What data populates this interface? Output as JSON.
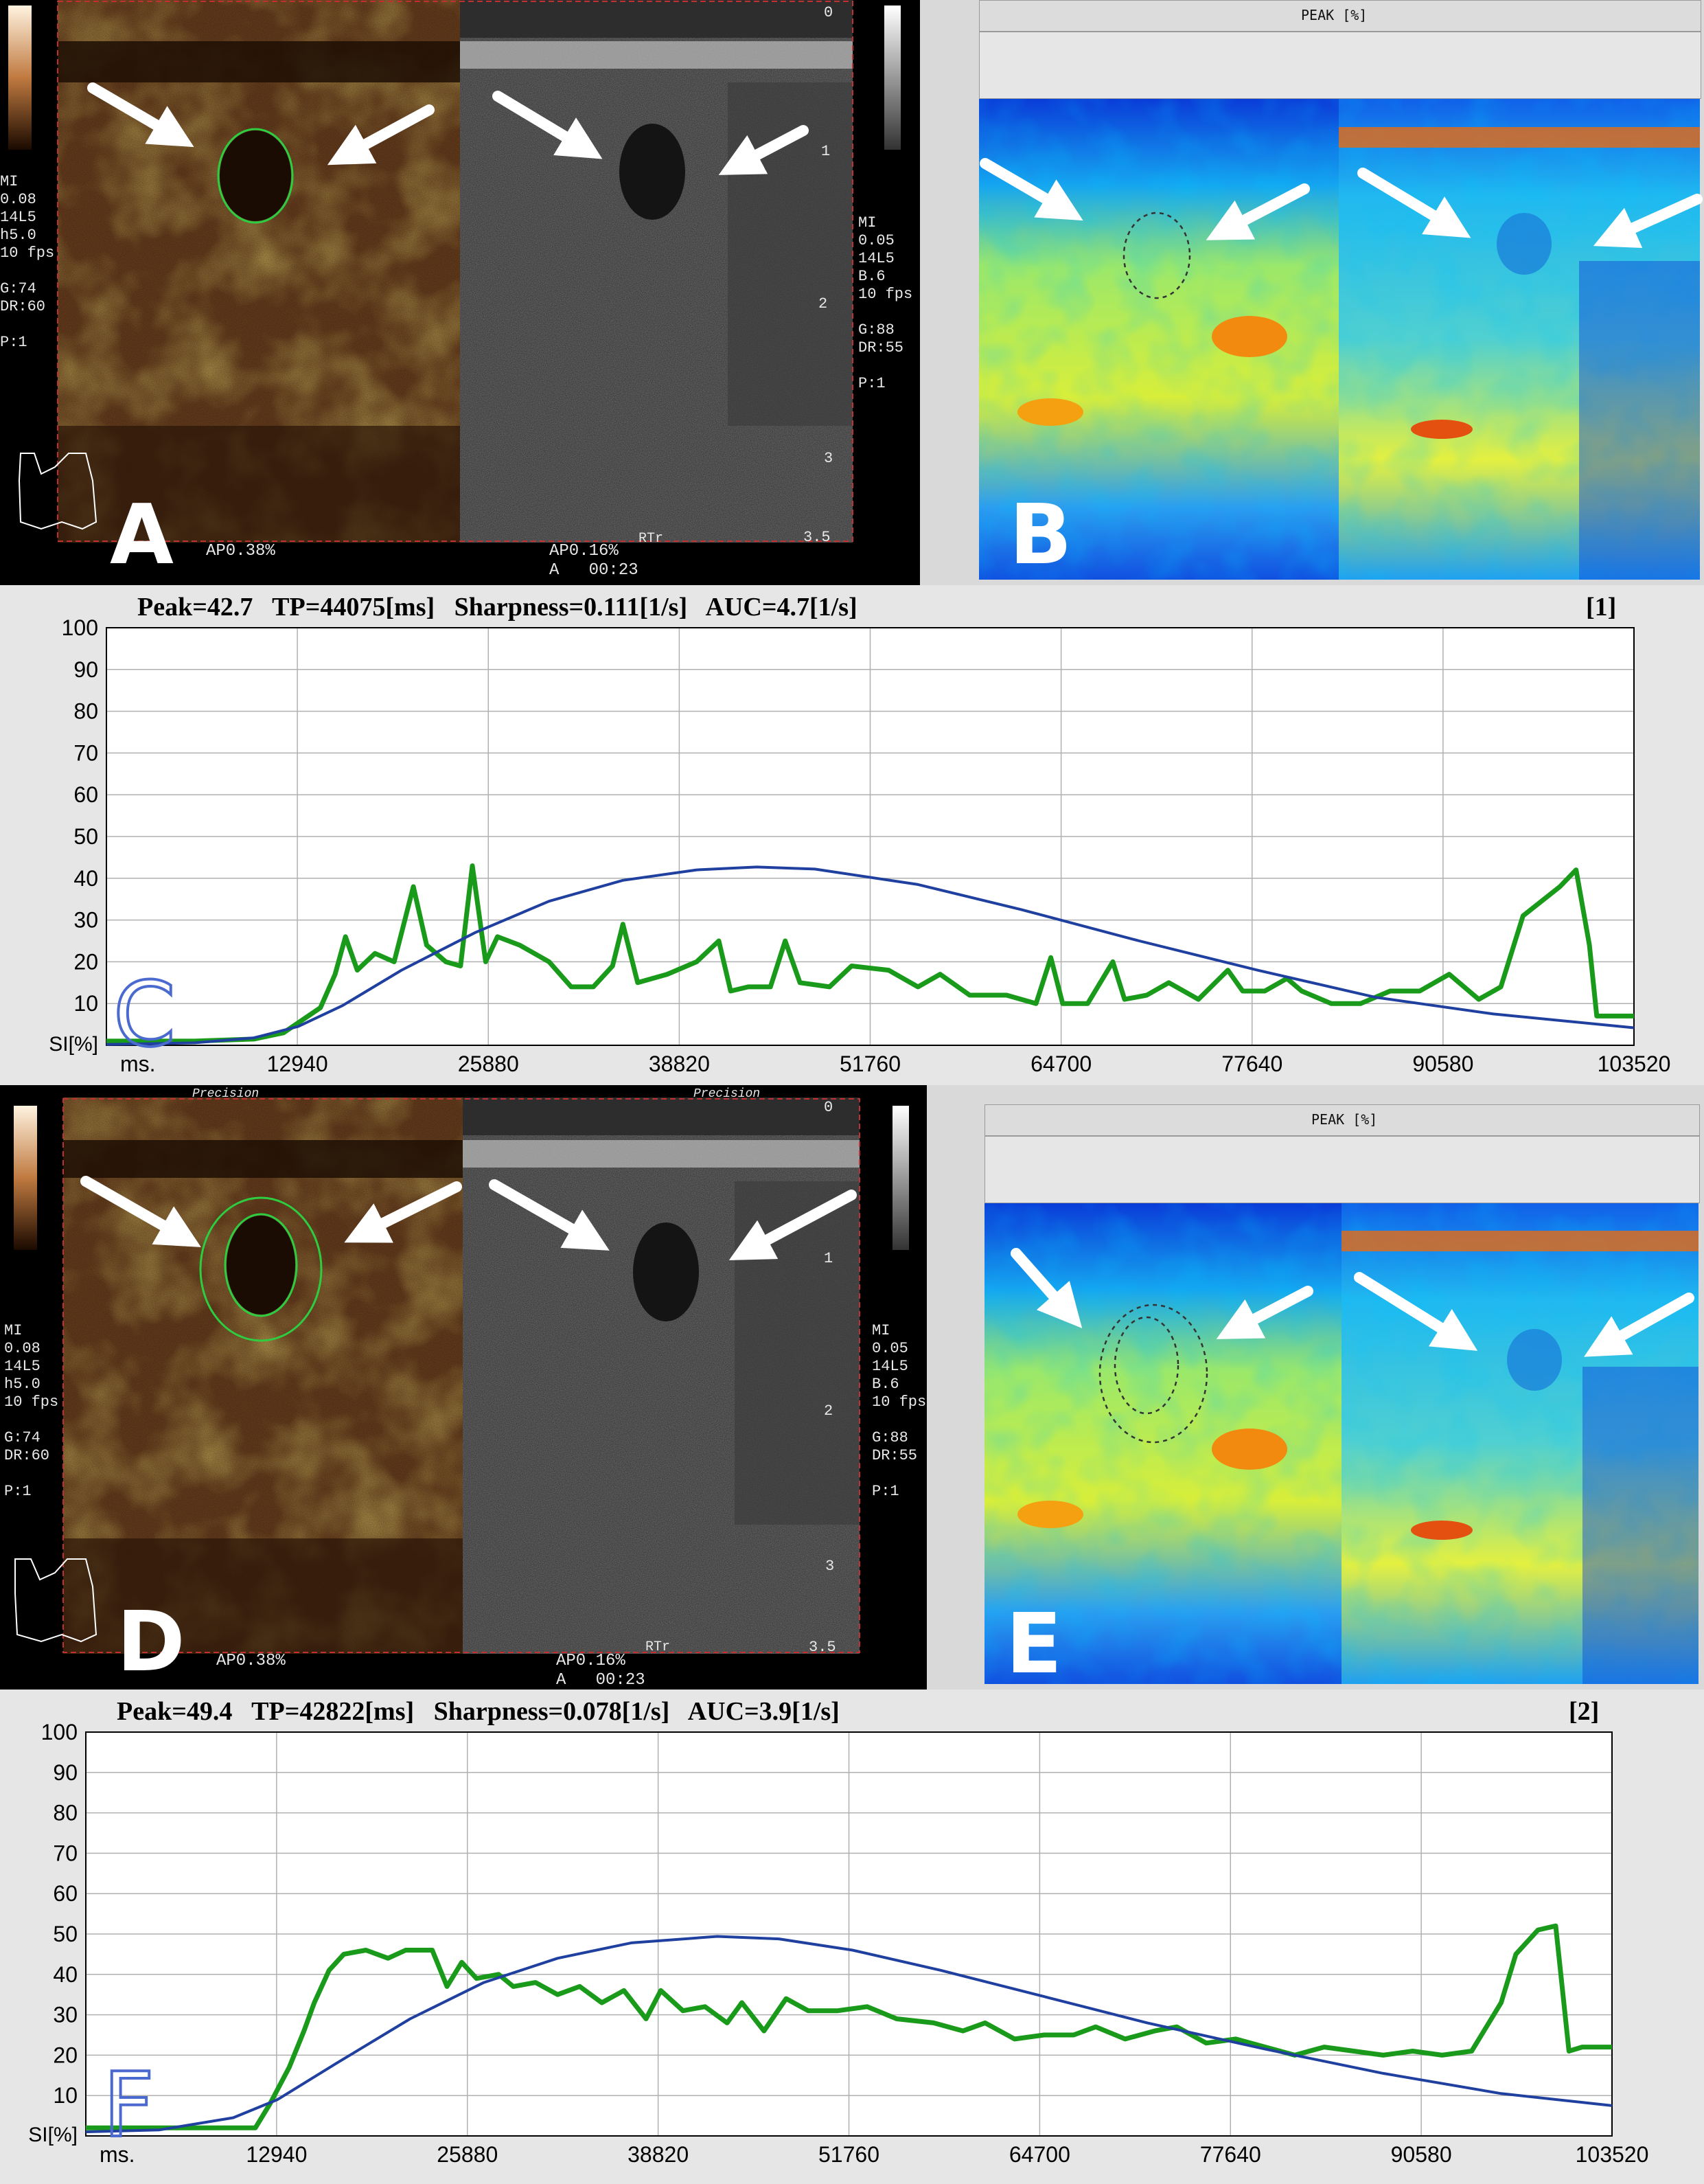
{
  "panels": {
    "a": {
      "letter": "A",
      "left_overlay": [
        "MI",
        "0.08",
        "14L5",
        "h5.0",
        "10 fps",
        "",
        "G:74",
        "DR:60",
        "",
        "P:1"
      ],
      "right_overlay": [
        "MI",
        "0.05",
        "14L5",
        "B.6",
        "10 fps",
        "",
        "G:88",
        "DR:55",
        "",
        "P:1"
      ],
      "bottom_left": "AP0.38%",
      "bottom_mid": "AP0.16%",
      "bottom_time": "A   00:23",
      "rtr": "RTr",
      "depth_ticks": [
        "0",
        "1",
        "2",
        "3",
        "3.5"
      ]
    },
    "b": {
      "letter": "B",
      "title": "PEAK [%]"
    },
    "d": {
      "letter": "D",
      "left_overlay": [
        "MI",
        "0.08",
        "14L5",
        "h5.0",
        "10 fps",
        "",
        "G:74",
        "DR:60",
        "",
        "P:1"
      ],
      "right_overlay": [
        "MI",
        "0.05",
        "14L5",
        "B.6",
        "10 fps",
        "",
        "G:88",
        "DR:55",
        "",
        "P:1"
      ],
      "bottom_left": "AP0.38%",
      "bottom_mid": "AP0.16%",
      "bottom_time": "A   00:23",
      "rtr": "RTr",
      "header_left": "Precision",
      "header_mid": "Precision",
      "depth_ticks": [
        "0",
        "1",
        "2",
        "3",
        "3.5"
      ]
    },
    "e": {
      "letter": "E",
      "title": "PEAK [%]"
    }
  },
  "chart_data": [
    {
      "panel_letter": "C",
      "type": "line",
      "title": "Peak=42.7   TP=44075[ms]   Sharpness=0.111[1/s]   AUC=4.7[1/s]",
      "roi_id": "[1]",
      "xlabel": "ms.",
      "ylabel": "SI[%]",
      "x_ticks": [
        "12940",
        "25880",
        "38820",
        "51760",
        "64700",
        "77640",
        "90580",
        "103520"
      ],
      "y_ticks": [
        "100",
        "90",
        "80",
        "70",
        "60",
        "50",
        "40",
        "30",
        "20",
        "10"
      ],
      "xlim": [
        0,
        103520
      ],
      "ylim": [
        0,
        100
      ],
      "grid": true,
      "series": [
        {
          "color": "#1a9a1a",
          "points": [
            [
              0,
              1
            ],
            [
              6000,
              1
            ],
            [
              10000,
              1.5
            ],
            [
              12000,
              3
            ],
            [
              14500,
              9
            ],
            [
              15500,
              17
            ],
            [
              16200,
              26
            ],
            [
              17000,
              18
            ],
            [
              18200,
              22
            ],
            [
              19500,
              20
            ],
            [
              20800,
              38
            ],
            [
              21700,
              24
            ],
            [
              23000,
              20
            ],
            [
              24000,
              19
            ],
            [
              24800,
              43
            ],
            [
              25700,
              20
            ],
            [
              26500,
              26
            ],
            [
              28000,
              24
            ],
            [
              30000,
              20
            ],
            [
              31500,
              14
            ],
            [
              33000,
              14
            ],
            [
              34300,
              19
            ],
            [
              35000,
              29
            ],
            [
              36000,
              15
            ],
            [
              38000,
              17
            ],
            [
              40000,
              20
            ],
            [
              41500,
              25
            ],
            [
              42300,
              13
            ],
            [
              43500,
              14
            ],
            [
              45000,
              14
            ],
            [
              46000,
              25
            ],
            [
              47000,
              15
            ],
            [
              49000,
              14
            ],
            [
              50500,
              19
            ],
            [
              53000,
              18
            ],
            [
              55000,
              14
            ],
            [
              56500,
              17
            ],
            [
              58500,
              12
            ],
            [
              61000,
              12
            ],
            [
              63000,
              10
            ],
            [
              64000,
              21
            ],
            [
              64800,
              10
            ],
            [
              66500,
              10
            ],
            [
              68200,
              20
            ],
            [
              69000,
              11
            ],
            [
              70500,
              12
            ],
            [
              72000,
              15
            ],
            [
              74000,
              11
            ],
            [
              76000,
              18
            ],
            [
              77000,
              13
            ],
            [
              78500,
              13
            ],
            [
              80000,
              16
            ],
            [
              81000,
              13
            ],
            [
              83000,
              10
            ],
            [
              85000,
              10
            ],
            [
              87000,
              13
            ],
            [
              89000,
              13
            ],
            [
              91000,
              17
            ],
            [
              93000,
              11
            ],
            [
              94500,
              14
            ],
            [
              96000,
              31
            ],
            [
              98500,
              38
            ],
            [
              99600,
              42
            ],
            [
              100500,
              24
            ],
            [
              101000,
              7
            ],
            [
              103520,
              7
            ]
          ]
        },
        {
          "color": "#2040a0",
          "points": [
            [
              0,
              0.2
            ],
            [
              6000,
              0.6
            ],
            [
              10000,
              1.8
            ],
            [
              13000,
              4.5
            ],
            [
              16000,
              9.5
            ],
            [
              20000,
              18
            ],
            [
              25000,
              27
            ],
            [
              30000,
              34.5
            ],
            [
              35000,
              39.5
            ],
            [
              40000,
              42
            ],
            [
              44075,
              42.7
            ],
            [
              48000,
              42.2
            ],
            [
              55000,
              38.5
            ],
            [
              62000,
              32.5
            ],
            [
              70000,
              25
            ],
            [
              78000,
              18
            ],
            [
              86000,
              11.5
            ],
            [
              94000,
              7.5
            ],
            [
              103520,
              4.2
            ]
          ]
        }
      ]
    },
    {
      "panel_letter": "F",
      "type": "line",
      "title": "Peak=49.4   TP=42822[ms]   Sharpness=0.078[1/s]   AUC=3.9[1/s]",
      "roi_id": "[2]",
      "xlabel": "ms.",
      "ylabel": "SI[%]",
      "x_ticks": [
        "12940",
        "25880",
        "38820",
        "51760",
        "64700",
        "77640",
        "90580",
        "103520"
      ],
      "y_ticks": [
        "100",
        "90",
        "80",
        "70",
        "60",
        "50",
        "40",
        "30",
        "20",
        "10"
      ],
      "xlim": [
        0,
        103520
      ],
      "ylim": [
        0,
        100
      ],
      "grid": true,
      "series": [
        {
          "color": "#1a9a1a",
          "points": [
            [
              0,
              2
            ],
            [
              8000,
              2
            ],
            [
              11500,
              2
            ],
            [
              12500,
              8
            ],
            [
              13800,
              17
            ],
            [
              14800,
              26
            ],
            [
              15500,
              33
            ],
            [
              16500,
              41
            ],
            [
              17500,
              45
            ],
            [
              19000,
              46
            ],
            [
              20500,
              44
            ],
            [
              21700,
              46
            ],
            [
              23500,
              46
            ],
            [
              24500,
              37
            ],
            [
              25500,
              43
            ],
            [
              26500,
              39
            ],
            [
              28000,
              40
            ],
            [
              29000,
              37
            ],
            [
              30500,
              38
            ],
            [
              32000,
              35
            ],
            [
              33500,
              37
            ],
            [
              35000,
              33
            ],
            [
              36500,
              36
            ],
            [
              38000,
              29
            ],
            [
              39000,
              36
            ],
            [
              40500,
              31
            ],
            [
              42000,
              32
            ],
            [
              43500,
              28
            ],
            [
              44500,
              33
            ],
            [
              46000,
              26
            ],
            [
              47500,
              34
            ],
            [
              49000,
              31
            ],
            [
              51000,
              31
            ],
            [
              53000,
              32
            ],
            [
              55000,
              29
            ],
            [
              57500,
              28
            ],
            [
              59500,
              26
            ],
            [
              61000,
              28
            ],
            [
              63000,
              24
            ],
            [
              65000,
              25
            ],
            [
              67000,
              25
            ],
            [
              68500,
              27
            ],
            [
              70500,
              24
            ],
            [
              72500,
              26
            ],
            [
              74000,
              27
            ],
            [
              76000,
              23
            ],
            [
              78000,
              24
            ],
            [
              80000,
              22
            ],
            [
              82000,
              20
            ],
            [
              84000,
              22
            ],
            [
              86000,
              21
            ],
            [
              88000,
              20
            ],
            [
              90000,
              21
            ],
            [
              92000,
              20
            ],
            [
              94000,
              21
            ],
            [
              96000,
              33
            ],
            [
              97000,
              45
            ],
            [
              98500,
              51
            ],
            [
              99700,
              52
            ],
            [
              100600,
              21
            ],
            [
              101500,
              22
            ],
            [
              103520,
              22
            ]
          ]
        },
        {
          "color": "#2040a0",
          "points": [
            [
              0,
              1
            ],
            [
              5000,
              1.5
            ],
            [
              10000,
              4.5
            ],
            [
              13000,
              9
            ],
            [
              17000,
              18
            ],
            [
              22000,
              29
            ],
            [
              27000,
              38
            ],
            [
              32000,
              44
            ],
            [
              37000,
              47.8
            ],
            [
              42822,
              49.4
            ],
            [
              47000,
              48.8
            ],
            [
              52000,
              46
            ],
            [
              58000,
              41
            ],
            [
              65000,
              34.5
            ],
            [
              72000,
              28
            ],
            [
              80000,
              21.5
            ],
            [
              88000,
              15.5
            ],
            [
              96000,
              10.5
            ],
            [
              103520,
              7.5
            ]
          ]
        }
      ]
    }
  ]
}
